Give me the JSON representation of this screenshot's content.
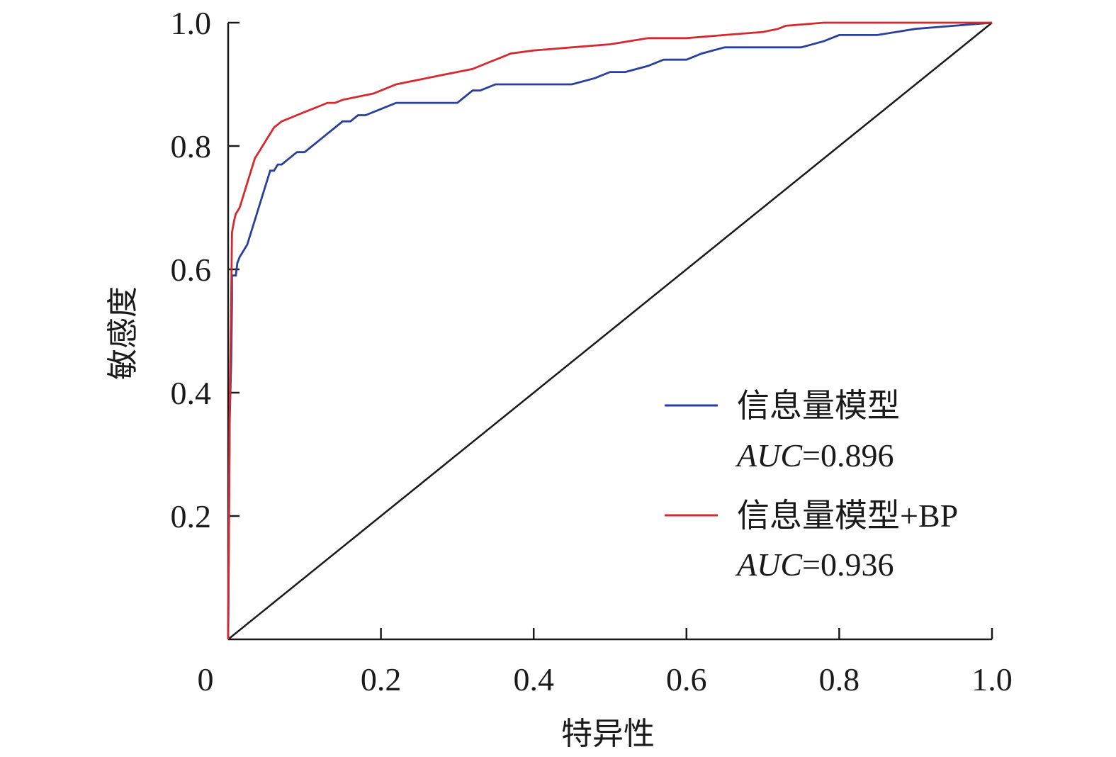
{
  "chart_data": {
    "type": "line",
    "title": "",
    "xlabel": "特异性",
    "ylabel": "敏感度",
    "xlim": [
      0,
      1
    ],
    "ylim": [
      0,
      1
    ],
    "x_ticks": [
      "0",
      "0.2",
      "0.4",
      "0.6",
      "0.8",
      "1.0"
    ],
    "y_ticks": [
      "0.2",
      "0.4",
      "0.6",
      "0.8",
      "1.0"
    ],
    "grid": false,
    "legend_position": "bottom-right",
    "series": [
      {
        "name": "信息量模型",
        "auc_label": "AUC",
        "auc_value": "=0.896",
        "color": "#2a3f9a",
        "x": [
          0,
          0.002,
          0.004,
          0.005,
          0.005,
          0.01,
          0.012,
          0.015,
          0.02,
          0.025,
          0.03,
          0.035,
          0.04,
          0.045,
          0.05,
          0.055,
          0.06,
          0.065,
          0.07,
          0.08,
          0.09,
          0.1,
          0.11,
          0.12,
          0.13,
          0.14,
          0.15,
          0.16,
          0.17,
          0.18,
          0.2,
          0.22,
          0.24,
          0.26,
          0.28,
          0.3,
          0.31,
          0.32,
          0.33,
          0.35,
          0.37,
          0.4,
          0.45,
          0.48,
          0.5,
          0.52,
          0.55,
          0.57,
          0.6,
          0.62,
          0.65,
          0.7,
          0.75,
          0.78,
          0.8,
          0.85,
          0.9,
          0.95,
          1.0
        ],
        "y": [
          0,
          0.36,
          0.45,
          0.55,
          0.59,
          0.59,
          0.61,
          0.62,
          0.63,
          0.64,
          0.66,
          0.68,
          0.7,
          0.72,
          0.74,
          0.76,
          0.76,
          0.77,
          0.77,
          0.78,
          0.79,
          0.79,
          0.8,
          0.81,
          0.82,
          0.83,
          0.84,
          0.84,
          0.85,
          0.85,
          0.86,
          0.87,
          0.87,
          0.87,
          0.87,
          0.87,
          0.88,
          0.89,
          0.89,
          0.9,
          0.9,
          0.9,
          0.9,
          0.91,
          0.92,
          0.92,
          0.93,
          0.94,
          0.94,
          0.95,
          0.96,
          0.96,
          0.96,
          0.97,
          0.98,
          0.98,
          0.99,
          0.995,
          1.0
        ]
      },
      {
        "name": "信息量模型+BP",
        "auc_label": "AUC",
        "auc_value": "=0.936",
        "color": "#d42a2f",
        "x": [
          0,
          0.002,
          0.003,
          0.004,
          0.005,
          0.008,
          0.01,
          0.015,
          0.02,
          0.025,
          0.03,
          0.035,
          0.04,
          0.045,
          0.05,
          0.055,
          0.06,
          0.07,
          0.08,
          0.09,
          0.1,
          0.11,
          0.12,
          0.13,
          0.14,
          0.15,
          0.17,
          0.19,
          0.2,
          0.22,
          0.24,
          0.26,
          0.28,
          0.3,
          0.32,
          0.34,
          0.36,
          0.37,
          0.4,
          0.45,
          0.5,
          0.55,
          0.6,
          0.65,
          0.7,
          0.72,
          0.73,
          0.78,
          0.8,
          0.9,
          1.0
        ],
        "y": [
          0,
          0.36,
          0.45,
          0.55,
          0.66,
          0.68,
          0.69,
          0.7,
          0.72,
          0.74,
          0.76,
          0.78,
          0.79,
          0.8,
          0.81,
          0.82,
          0.83,
          0.84,
          0.845,
          0.85,
          0.855,
          0.86,
          0.865,
          0.87,
          0.87,
          0.875,
          0.88,
          0.885,
          0.89,
          0.9,
          0.905,
          0.91,
          0.915,
          0.92,
          0.925,
          0.935,
          0.945,
          0.95,
          0.955,
          0.96,
          0.965,
          0.975,
          0.975,
          0.98,
          0.985,
          0.99,
          0.995,
          1.0,
          1.0,
          1.0,
          1.0
        ]
      },
      {
        "name": "",
        "color": "#1a1a1a",
        "x": [
          0,
          1
        ],
        "y": [
          0,
          1
        ]
      }
    ]
  }
}
